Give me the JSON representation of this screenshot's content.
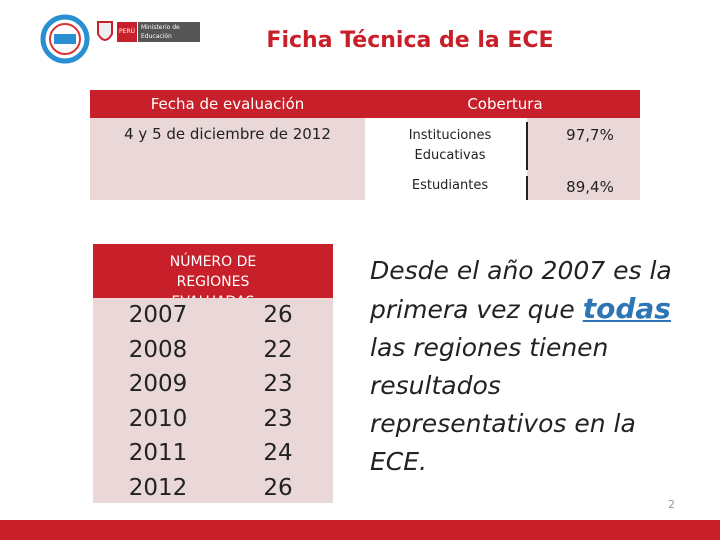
{
  "header": {
    "country": "PERÚ",
    "ministry": "Ministerio de Educación"
  },
  "title": "Ficha Técnica de la ECE",
  "evaluation_table": {
    "headers": [
      "Fecha de evaluación",
      "Cobertura"
    ],
    "date": "4 y 5 de diciembre de 2012",
    "rows": [
      [
        "Instituciones Educativas",
        "97,7%"
      ],
      [
        "Estudiantes",
        "89,4%"
      ]
    ]
  },
  "regions_table": {
    "title": "NÚMERO DE REGIONES EVALUADAS",
    "rows": [
      [
        2007,
        26
      ],
      [
        2008,
        22
      ],
      [
        2009,
        23
      ],
      [
        2010,
        23
      ],
      [
        2011,
        24
      ],
      [
        2012,
        26
      ]
    ]
  },
  "statement": {
    "lines": [
      [
        "Desde el año 2007 es la"
      ],
      [
        "primera vez que",
        "todas"
      ],
      [
        "las regiones tienen"
      ],
      [
        "resultados"
      ],
      [
        "representativos en la"
      ],
      [
        "ECE."
      ]
    ]
  },
  "page_number": 2
}
